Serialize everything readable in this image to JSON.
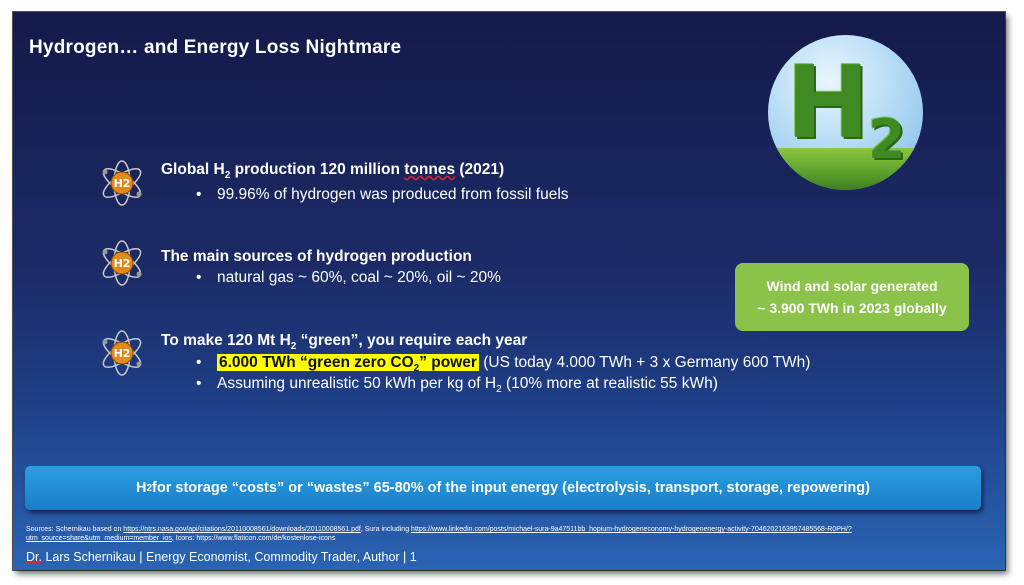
{
  "slide": {
    "title": "Hydrogen… and Energy Loss Nightmare",
    "image": {
      "letter_main": "H",
      "letter_sub": "2"
    },
    "bullets": [
      {
        "icon": "h2-atom-icon",
        "heading_pre": "Global H",
        "heading_sub": "2",
        "heading_post": " production 120 million ",
        "heading_underlined": "tonnes",
        "heading_end": " (2021)",
        "items": [
          {
            "text": "99.96% of hydrogen was produced from fossil fuels"
          }
        ]
      },
      {
        "icon": "h2-atom-icon",
        "heading": "The main sources of hydrogen production",
        "items": [
          {
            "text": "natural gas ~ 60%, coal ~ 20%, oil ~ 20%"
          }
        ]
      },
      {
        "icon": "h2-atom-icon",
        "heading_pre": "To make 120 Mt H",
        "heading_sub": "2",
        "heading_post": " “green”, you require each year",
        "items": [
          {
            "highlight_pre": "6.000 TWh “green zero CO",
            "highlight_sub": "2",
            "highlight_post": "” power",
            "text": " (US today 4.000 TWh + 3 x Germany 600 TWh)"
          },
          {
            "text_pre": "Assuming unrealistic 50 kWh per kg of H",
            "text_sub": "2",
            "text_post": " (10% more at realistic 55 kWh)"
          }
        ]
      }
    ],
    "green_box": {
      "line1": "Wind and solar generated",
      "line2": "~ 3.900 TWh in 2023 globally",
      "color": "#8bc34a"
    },
    "blue_bar": {
      "pre": "H",
      "sub": "2",
      "post": " for storage “costs” or “wastes” 65-80% of the input energy (electrolysis, transport, storage, repowering)",
      "color": "#1f8fd6"
    },
    "sources": {
      "prefix": "Sources: Schernikau based on ",
      "link1": "https://ntrs.nasa.gov/api/citations/20110008561/downloads/20110008561.pdf",
      "middle": ", Sura including ",
      "link2": "https://www.linkedin.com/posts/michael-sura-9a47511bb_hopium-hydrogeneconomy-hydrogenenergy-activity-7046202163957485568-R0PH/?utm_source=share&utm_medium=member_ios",
      "suffix": ", Icons: https://www.flaticon.com/de/kostenlose-icons"
    },
    "footer": {
      "name_underlined": "Dr.",
      "text": " Lars Schernikau | Energy Economist, Commodity Trader, Author | 1"
    }
  }
}
